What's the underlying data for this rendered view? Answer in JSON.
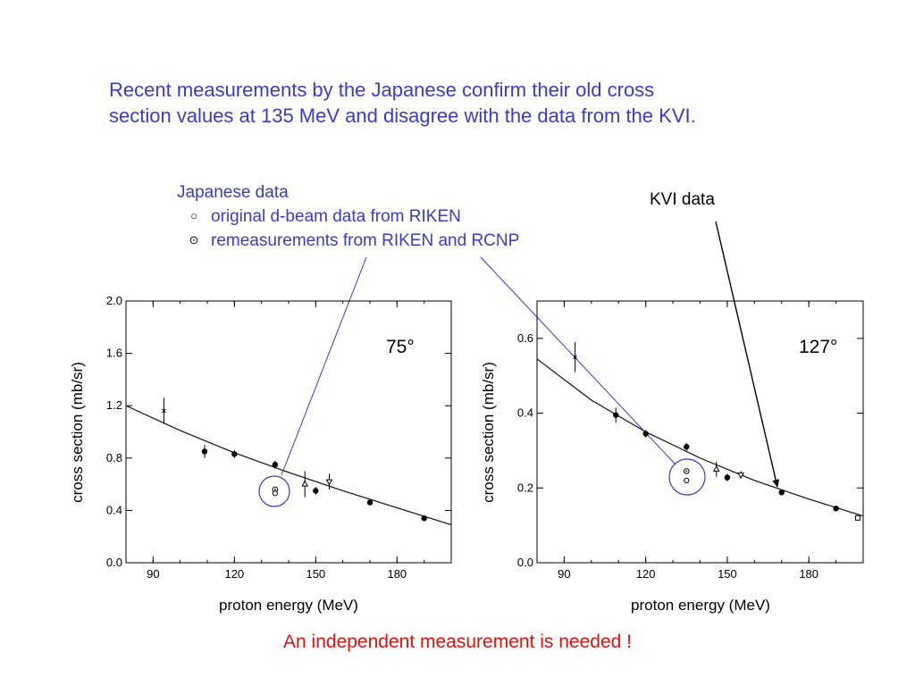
{
  "headline": {
    "line1": "Recent measurements by the Japanese confirm their old cross",
    "line2": "section values at 135 MeV and disagree with the data from the KVI."
  },
  "legend": {
    "title": "Japanese data",
    "items": [
      {
        "symbol": "○",
        "label": "original d-beam data from RIKEN"
      },
      {
        "symbol": "⊙",
        "label": "remeasurements from RIKEN and RCNP"
      }
    ]
  },
  "kvi_label": "KVI data",
  "conclusion": "An independent measurement is needed !",
  "colors": {
    "blue": "#3a3ad0",
    "red": "#e01010",
    "axes": "#000000"
  },
  "chart_data": [
    {
      "type": "scatter",
      "annotation": "75°",
      "xlabel": "proton energy  (MeV)",
      "ylabel": "cross section  (mb/sr)",
      "xlim": [
        80,
        200
      ],
      "ylim": [
        0,
        2.0
      ],
      "xticks": [
        "90",
        "120",
        "150",
        "180"
      ],
      "yticks": [
        "0.0",
        "0.4",
        "0.8",
        "1.2",
        "1.6",
        "2.0"
      ],
      "points": [
        {
          "x": 94,
          "y": 1.16,
          "err": 0.1,
          "marker": "cross"
        },
        {
          "x": 109,
          "y": 0.85,
          "err": 0.05,
          "marker": "filled"
        },
        {
          "x": 120,
          "y": 0.83,
          "err": 0.03,
          "marker": "filled"
        },
        {
          "x": 135,
          "y": 0.75,
          "err": 0.03,
          "marker": "filled"
        },
        {
          "x": 135,
          "y": 0.56,
          "err": 0,
          "marker": "dot-circle"
        },
        {
          "x": 135,
          "y": 0.53,
          "err": 0,
          "marker": "open"
        },
        {
          "x": 146,
          "y": 0.6,
          "err": 0.1,
          "marker": "open-triangle"
        },
        {
          "x": 150,
          "y": 0.55,
          "err": 0.03,
          "marker": "filled"
        },
        {
          "x": 155,
          "y": 0.62,
          "err": 0.06,
          "marker": "open-triangle-down"
        },
        {
          "x": 170,
          "y": 0.46,
          "err": 0,
          "marker": "filled"
        },
        {
          "x": 190,
          "y": 0.34,
          "err": 0,
          "marker": "filled"
        }
      ],
      "curve": {
        "x": [
          80,
          100,
          120,
          140,
          160,
          180,
          200
        ],
        "y": [
          1.2,
          1.01,
          0.84,
          0.69,
          0.55,
          0.42,
          0.29
        ]
      }
    },
    {
      "type": "scatter",
      "annotation": "127°",
      "xlabel": "proton energy  (MeV)",
      "ylabel": "cross section  (mb/sr)",
      "xlim": [
        80,
        200
      ],
      "ylim": [
        0,
        0.7
      ],
      "xticks": [
        "90",
        "120",
        "150",
        "180"
      ],
      "yticks": [
        "0.0",
        "0.2",
        "0.4",
        "0.6"
      ],
      "points": [
        {
          "x": 94,
          "y": 0.55,
          "err": 0.04,
          "marker": "cross"
        },
        {
          "x": 109,
          "y": 0.395,
          "err": 0.02,
          "marker": "filled"
        },
        {
          "x": 120,
          "y": 0.345,
          "err": 0.01,
          "marker": "filled"
        },
        {
          "x": 135,
          "y": 0.31,
          "err": 0.01,
          "marker": "filled"
        },
        {
          "x": 135,
          "y": 0.245,
          "err": 0,
          "marker": "dot-circle"
        },
        {
          "x": 135,
          "y": 0.22,
          "err": 0,
          "marker": "open"
        },
        {
          "x": 146,
          "y": 0.25,
          "err": 0.02,
          "marker": "open-triangle"
        },
        {
          "x": 150,
          "y": 0.228,
          "err": 0.01,
          "marker": "filled"
        },
        {
          "x": 155,
          "y": 0.235,
          "err": 0.01,
          "marker": "open-triangle-down"
        },
        {
          "x": 170,
          "y": 0.188,
          "err": 0,
          "marker": "filled"
        },
        {
          "x": 190,
          "y": 0.145,
          "err": 0,
          "marker": "filled"
        },
        {
          "x": 198,
          "y": 0.12,
          "err": 0,
          "marker": "open-square"
        }
      ],
      "curve": {
        "x": [
          80,
          100,
          120,
          140,
          160,
          180,
          200
        ],
        "y": [
          0.545,
          0.435,
          0.35,
          0.28,
          0.22,
          0.17,
          0.125
        ]
      }
    }
  ]
}
